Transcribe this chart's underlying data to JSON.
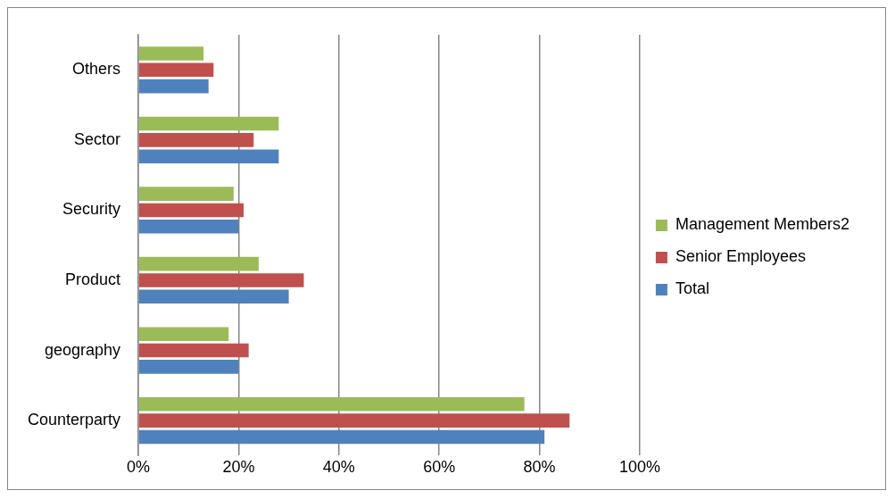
{
  "chart_data": {
    "type": "bar",
    "orientation": "horizontal",
    "categories": [
      "Others",
      "Sector",
      "Security",
      "Product",
      "geography",
      "Counterparty"
    ],
    "series": [
      {
        "name": "Management Members2",
        "color": "#9bbb59",
        "values": [
          13,
          28,
          19,
          24,
          18,
          77
        ]
      },
      {
        "name": "Senior Employees",
        "color": "#c0504d",
        "values": [
          15,
          23,
          21,
          33,
          22,
          86
        ]
      },
      {
        "name": "Total",
        "color": "#4f81bd",
        "values": [
          14,
          28,
          20,
          30,
          20,
          81
        ]
      }
    ],
    "xlim": [
      0,
      100
    ],
    "xticks": [
      {
        "value": 0,
        "label": "0%"
      },
      {
        "value": 20,
        "label": "20%"
      },
      {
        "value": 40,
        "label": "40%"
      },
      {
        "value": 60,
        "label": "60%"
      },
      {
        "value": 80,
        "label": "80%"
      },
      {
        "value": 100,
        "label": "100%"
      }
    ],
    "grid": "x",
    "legend": "right"
  }
}
